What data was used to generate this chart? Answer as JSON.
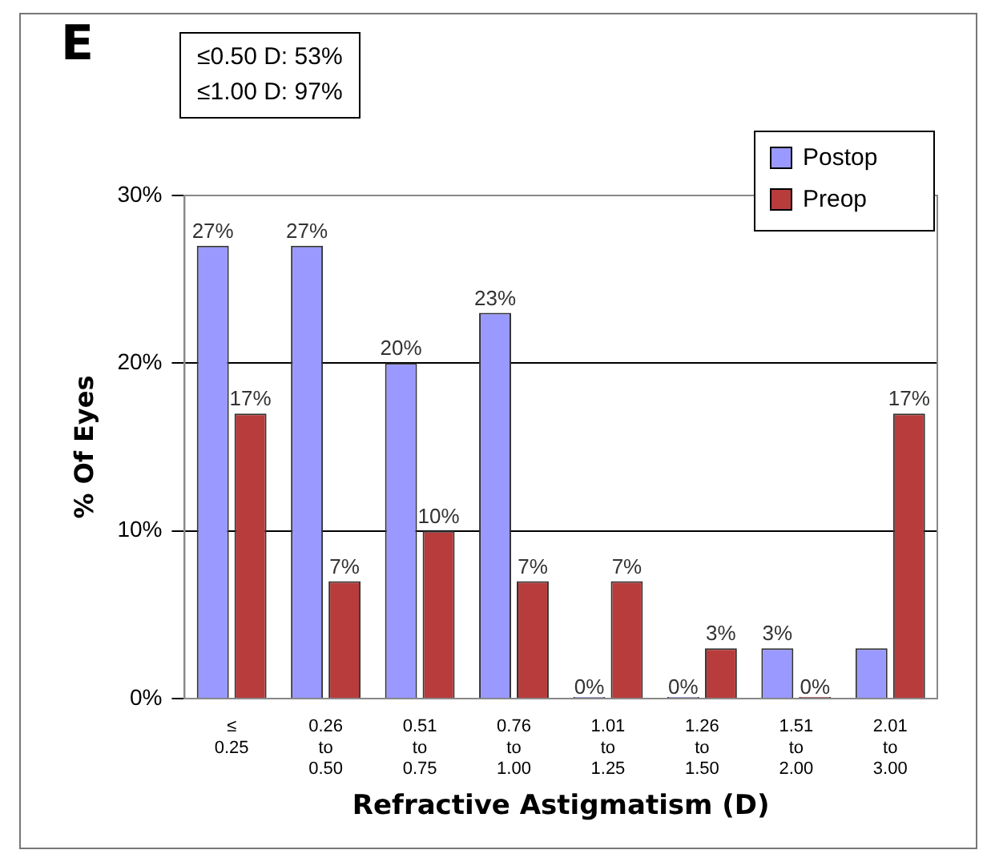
{
  "chart_data": {
    "type": "bar",
    "xlabel": "Refractive Astigmatism (D)",
    "ylabel": "% Of Eyes",
    "categories": [
      "≤\n0.25",
      "0.26\nto\n0.50",
      "0.51\nto\n0.75",
      "0.76\nto\n1.00",
      "1.01\nto\n1.25",
      "1.26\nto\n1.50",
      "1.51\nto\n2.00",
      "2.01\nto\n3.00"
    ],
    "series": [
      {
        "name": "Postop",
        "color": "#9999ff",
        "values": [
          27,
          27,
          20,
          23,
          0,
          0,
          3,
          3
        ],
        "value_labels": [
          "27%",
          "27%",
          "20%",
          "23%",
          "0%",
          "0%",
          "3%",
          null
        ]
      },
      {
        "name": "Preop",
        "color": "#b83c3c",
        "values": [
          17,
          7,
          10,
          7,
          7,
          3,
          0,
          17
        ],
        "value_labels": [
          "17%",
          "7%",
          "10%",
          "7%",
          "7%",
          "3%",
          "0%",
          "17%"
        ]
      }
    ],
    "ylim": [
      0,
      30
    ],
    "yticks": [
      {
        "value": 0,
        "label": "0%"
      },
      {
        "value": 10,
        "label": "10%"
      },
      {
        "value": 20,
        "label": "20%"
      },
      {
        "value": 30,
        "label": "30%"
      }
    ],
    "grid": "y",
    "legend": "top right",
    "annotations": [
      "E",
      "≤0.50 D: 53%",
      "≤1.00 D: 97%"
    ]
  }
}
